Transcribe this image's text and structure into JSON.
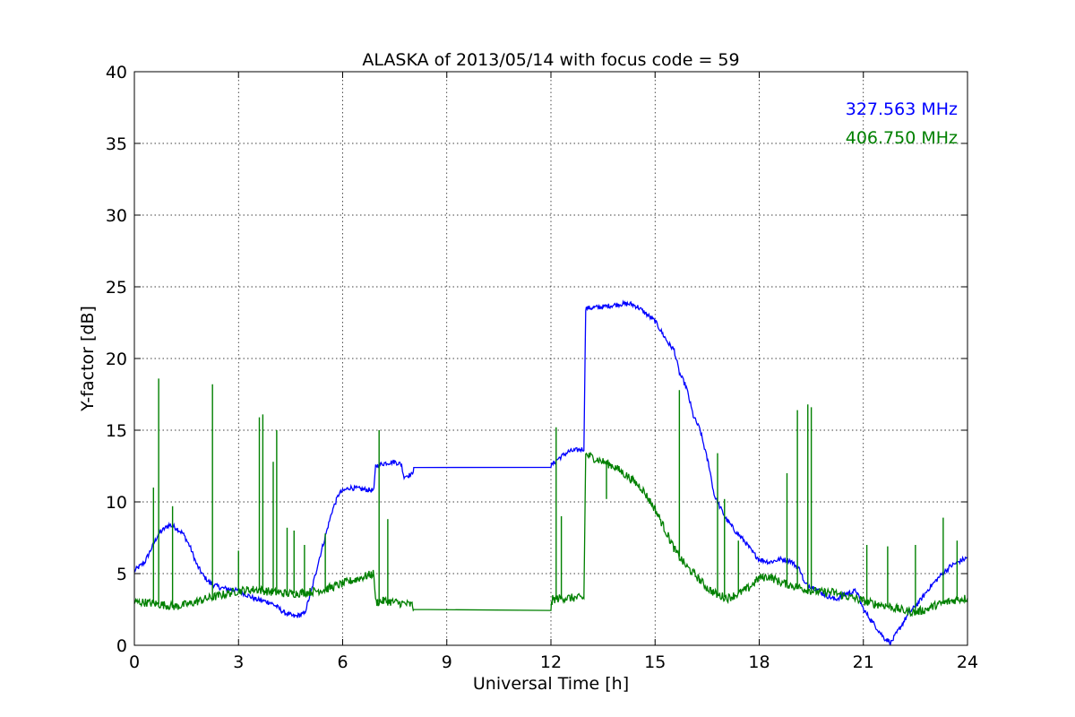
{
  "chart_data": {
    "type": "line",
    "title": "ALASKA of 2013/05/14 with focus code = 59",
    "xlabel": "Universal Time [h]",
    "ylabel": "Y-factor [dB]",
    "xlim": [
      0,
      24
    ],
    "ylim": [
      0,
      40
    ],
    "xticks": [
      0,
      3,
      6,
      9,
      12,
      15,
      18,
      21,
      24
    ],
    "yticks": [
      0,
      5,
      10,
      15,
      20,
      25,
      30,
      35,
      40
    ],
    "xtick_labels": [
      "0",
      "3",
      "6",
      "9",
      "12",
      "15",
      "18",
      "21",
      "24"
    ],
    "ytick_labels": [
      "0",
      "5",
      "10",
      "15",
      "20",
      "25",
      "30",
      "35",
      "40"
    ],
    "grid": true,
    "legend_placement": "top-right",
    "series": [
      {
        "name": "327.563 MHz",
        "color": "#0000ff",
        "x": [
          0,
          0.3,
          0.5,
          0.7,
          1.0,
          1.2,
          1.4,
          1.6,
          1.8,
          2.0,
          2.2,
          2.5,
          3.0,
          3.5,
          3.9,
          4.1,
          4.3,
          4.6,
          4.9,
          5.1,
          5.3,
          5.5,
          5.7,
          5.9,
          6.2,
          6.5,
          6.9,
          6.95,
          7.2,
          7.5,
          7.7,
          7.75,
          8.0,
          8.05,
          12.0,
          12.2,
          12.5,
          12.95,
          13.0,
          13.5,
          14.0,
          14.3,
          14.5,
          14.7,
          15.0,
          15.2,
          15.4,
          15.55,
          15.7,
          15.9,
          16.0,
          16.1,
          16.3,
          16.5,
          16.55,
          16.7,
          16.9,
          17.05,
          17.3,
          17.6,
          17.8,
          18.0,
          18.3,
          18.6,
          18.9,
          19.2,
          19.3,
          19.6,
          19.9,
          20.2,
          20.5,
          20.8,
          21.0,
          21.3,
          21.6,
          21.8,
          22.0,
          22.3,
          22.6,
          22.9,
          23.2,
          23.5,
          23.8,
          24.0
        ],
        "y": [
          5.2,
          5.8,
          6.8,
          7.8,
          8.4,
          8.2,
          7.8,
          6.9,
          5.6,
          4.8,
          4.3,
          4.0,
          3.8,
          3.2,
          3.0,
          2.7,
          2.3,
          2.0,
          2.2,
          3.8,
          5.8,
          7.6,
          9.4,
          10.6,
          11.0,
          10.9,
          10.8,
          12.5,
          12.7,
          12.8,
          12.6,
          11.8,
          11.9,
          12.4,
          12.5,
          13.0,
          13.5,
          13.7,
          23.5,
          23.6,
          23.8,
          23.8,
          23.6,
          23.2,
          22.6,
          21.8,
          21.0,
          20.6,
          19.0,
          18.0,
          17.0,
          16.0,
          15.0,
          13.0,
          12.6,
          10.5,
          9.5,
          8.8,
          8.0,
          7.2,
          6.5,
          6.0,
          5.8,
          6.0,
          5.9,
          5.2,
          4.3,
          4.0,
          3.5,
          3.2,
          3.6,
          3.8,
          2.5,
          1.5,
          0.5,
          0.2,
          1.0,
          2.2,
          3.0,
          4.0,
          4.8,
          5.5,
          5.9,
          6.1
        ]
      },
      {
        "name": "406.750 MHz",
        "color": "#008000",
        "x": [
          0,
          0.3,
          0.6,
          0.9,
          1.2,
          1.6,
          2.0,
          2.5,
          3.0,
          3.5,
          4.0,
          4.5,
          5.0,
          5.5,
          6.0,
          6.5,
          6.9,
          6.95,
          7.2,
          7.5,
          7.8,
          8.0,
          8.05,
          12.0,
          12.05,
          12.3,
          12.6,
          12.95,
          13.0,
          13.4,
          13.8,
          14.2,
          14.6,
          15.0,
          15.3,
          15.6,
          15.9,
          16.2,
          16.5,
          16.8,
          17.1,
          17.4,
          17.7,
          18.0,
          18.3,
          18.6,
          18.9,
          19.2,
          19.5,
          19.8,
          20.1,
          20.4,
          20.7,
          21.0,
          21.3,
          21.6,
          21.9,
          22.2,
          22.5,
          22.8,
          23.1,
          23.4,
          23.7,
          24.0
        ],
        "y": [
          3.0,
          3.0,
          2.9,
          2.8,
          2.7,
          2.9,
          3.2,
          3.5,
          3.8,
          3.9,
          3.7,
          3.6,
          3.7,
          3.9,
          4.3,
          4.7,
          5.0,
          3.0,
          3.1,
          3.0,
          2.9,
          2.8,
          2.5,
          2.6,
          3.2,
          3.3,
          3.3,
          3.3,
          13.3,
          12.9,
          12.5,
          11.8,
          11.0,
          9.5,
          8.0,
          6.5,
          5.5,
          4.8,
          4.0,
          3.5,
          3.3,
          3.6,
          4.0,
          4.7,
          4.8,
          4.4,
          4.2,
          4.0,
          3.8,
          3.7,
          3.7,
          3.5,
          3.3,
          3.1,
          2.9,
          2.8,
          2.6,
          2.4,
          2.3,
          2.5,
          2.8,
          3.0,
          3.2,
          3.3
        ],
        "spikes": [
          {
            "x": 0.55,
            "y": 11.0
          },
          {
            "x": 0.7,
            "y": 18.6
          },
          {
            "x": 1.1,
            "y": 9.7
          },
          {
            "x": 2.25,
            "y": 18.2
          },
          {
            "x": 3.0,
            "y": 6.6
          },
          {
            "x": 3.6,
            "y": 15.9
          },
          {
            "x": 3.7,
            "y": 16.1
          },
          {
            "x": 4.0,
            "y": 12.8
          },
          {
            "x": 4.1,
            "y": 15.0
          },
          {
            "x": 4.4,
            "y": 8.2
          },
          {
            "x": 4.6,
            "y": 8.0
          },
          {
            "x": 4.9,
            "y": 7.0
          },
          {
            "x": 5.5,
            "y": 7.8
          },
          {
            "x": 7.05,
            "y": 15.0
          },
          {
            "x": 7.3,
            "y": 8.8
          },
          {
            "x": 12.15,
            "y": 15.2
          },
          {
            "x": 12.3,
            "y": 9.0
          },
          {
            "x": 13.6,
            "y": 10.2
          },
          {
            "x": 15.7,
            "y": 17.8
          },
          {
            "x": 16.8,
            "y": 13.4
          },
          {
            "x": 17.0,
            "y": 10.2
          },
          {
            "x": 17.4,
            "y": 7.3
          },
          {
            "x": 18.8,
            "y": 12.0
          },
          {
            "x": 19.1,
            "y": 16.4
          },
          {
            "x": 19.4,
            "y": 16.8
          },
          {
            "x": 19.5,
            "y": 16.6
          },
          {
            "x": 21.1,
            "y": 7.0
          },
          {
            "x": 21.7,
            "y": 6.9
          },
          {
            "x": 22.5,
            "y": 7.0
          },
          {
            "x": 23.3,
            "y": 8.9
          },
          {
            "x": 23.7,
            "y": 7.3
          }
        ]
      }
    ]
  }
}
